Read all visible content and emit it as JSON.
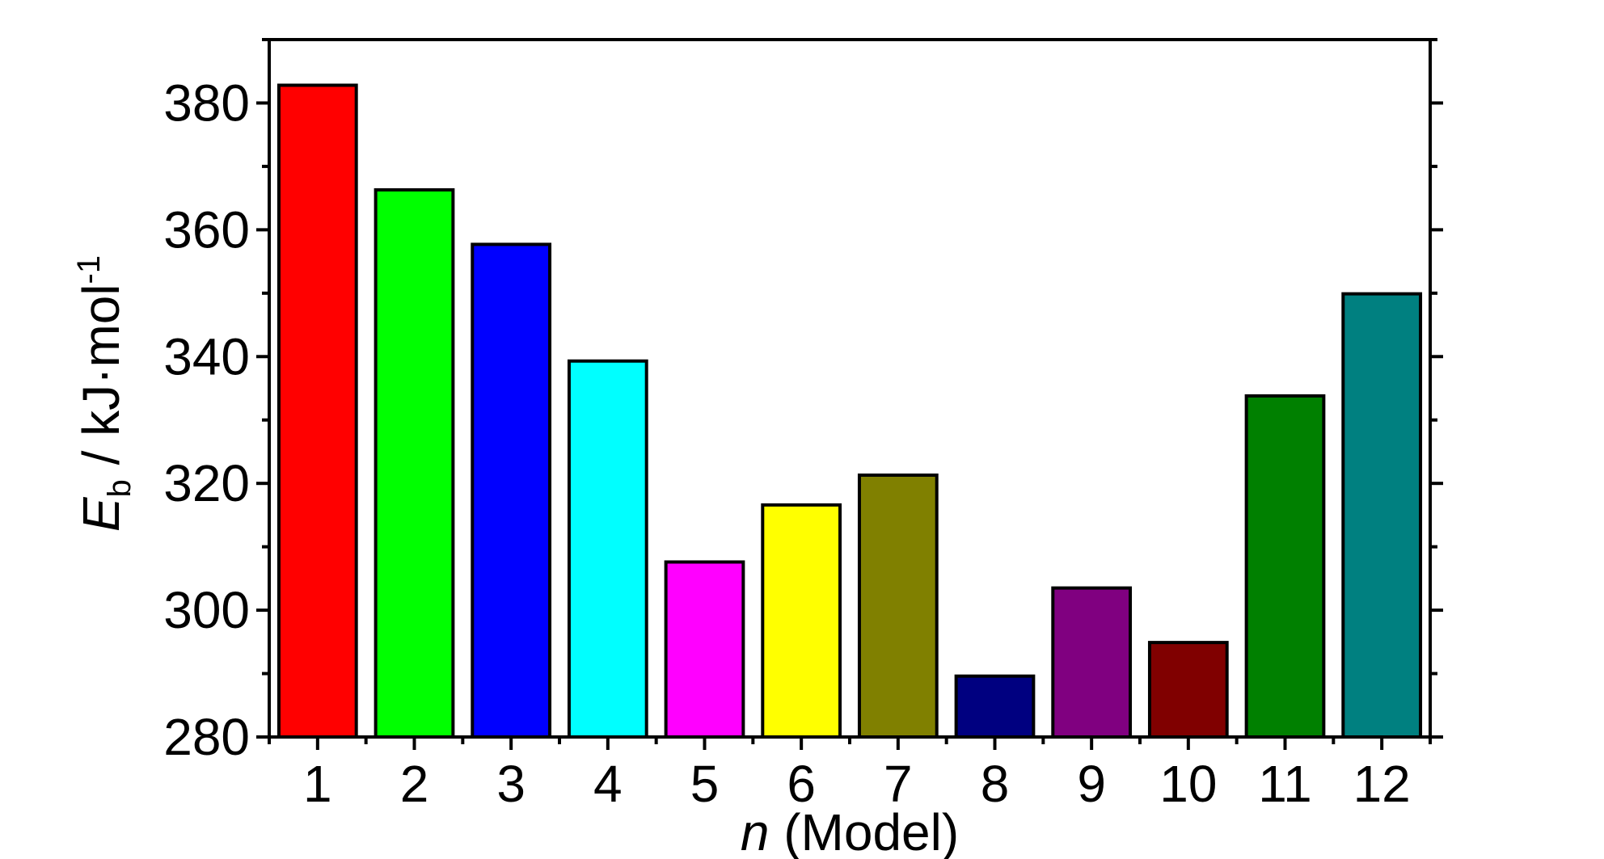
{
  "chart_data": {
    "type": "bar",
    "categories": [
      "1",
      "2",
      "3",
      "4",
      "5",
      "6",
      "7",
      "8",
      "9",
      "10",
      "11",
      "12"
    ],
    "values": [
      382.8,
      366.3,
      357.7,
      339.3,
      307.6,
      316.6,
      321.3,
      289.6,
      303.5,
      294.9,
      333.8,
      349.9
    ],
    "colors": [
      "#ff0000",
      "#00ff00",
      "#0000ff",
      "#00ffff",
      "#ff00ff",
      "#ffff00",
      "#808000",
      "#000080",
      "#800080",
      "#800000",
      "#008000",
      "#008080"
    ],
    "ylim": [
      280,
      390
    ],
    "yticks": [
      280,
      300,
      320,
      340,
      360,
      380
    ],
    "xlabel": {
      "var": "n",
      "text": " (Model)"
    },
    "ylabel": {
      "sym": "E",
      "sub": "b",
      "text": " / kJ·mol",
      "sup": "-1"
    },
    "title": "",
    "grid": false,
    "legend": "none"
  }
}
